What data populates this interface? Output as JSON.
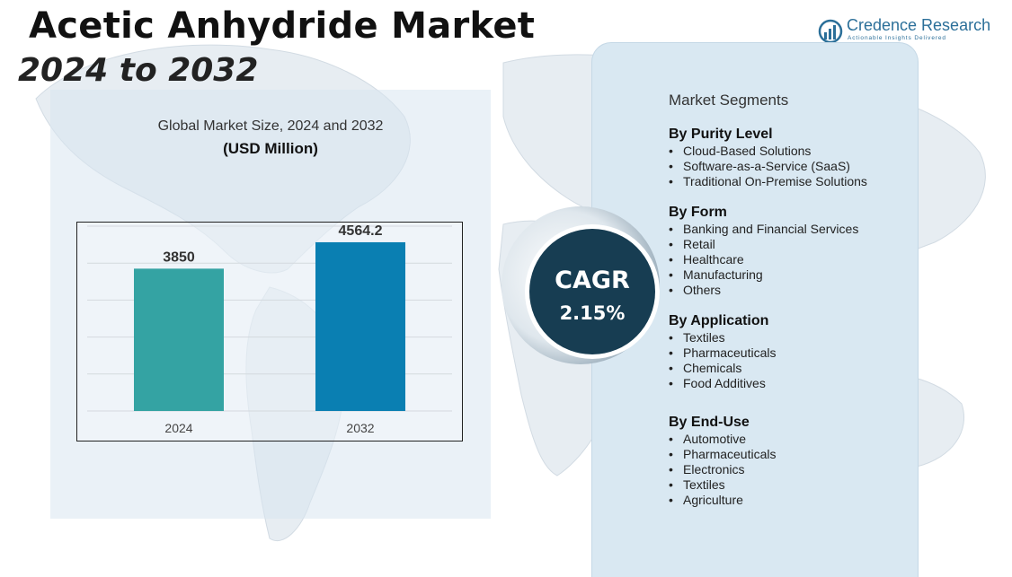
{
  "header": {
    "title": "Acetic Anhydride Market",
    "subtitle": "2024 to 2032"
  },
  "logo": {
    "name": "Credence Research",
    "tagline": "Actionable Insights Delivered"
  },
  "chart_panel": {
    "title": "Global Market Size, 2024 and 2032",
    "unit": "(USD Million)"
  },
  "chart_data": {
    "type": "bar",
    "title": "Global Market Size, 2024 and 2032",
    "ylabel": "(USD Million)",
    "xlabel": "",
    "categories": [
      "2024",
      "2032"
    ],
    "values": [
      3850,
      4564.2
    ],
    "value_labels": [
      "3850",
      "4564.2"
    ],
    "colors": [
      "#34a3a3",
      "#0a7fb2"
    ],
    "ylim": [
      0,
      5000
    ],
    "grid": true
  },
  "cagr": {
    "label": "CAGR",
    "value": "2.15%",
    "color": "#173d52"
  },
  "segments": {
    "heading": "Market Segments",
    "groups": [
      {
        "title": "By Purity Level",
        "items": [
          "Cloud-Based Solutions",
          "Software-as-a-Service (SaaS)",
          "Traditional On-Premise Solutions"
        ]
      },
      {
        "title": "By Form",
        "items": [
          "Banking and Financial Services",
          "Retail",
          "Healthcare",
          "Manufacturing",
          "Others"
        ]
      },
      {
        "title": "By Application",
        "items": [
          "Textiles",
          "Pharmaceuticals",
          "Chemicals",
          "Food Additives"
        ]
      },
      {
        "title": "By End-Use",
        "items": [
          "Automotive",
          "Pharmaceuticals",
          "Electronics",
          "Textiles",
          "Agriculture"
        ]
      }
    ]
  },
  "colors": {
    "panel_bg": "#d9e8f2",
    "brand": "#2b6f99"
  }
}
